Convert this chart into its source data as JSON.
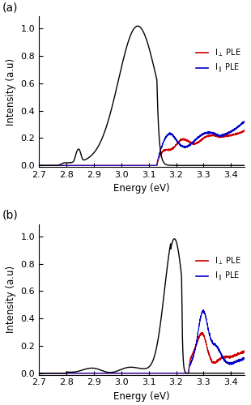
{
  "panel_a_label": "(a)",
  "panel_b_label": "(b)",
  "xticks": [
    2.7,
    2.8,
    2.9,
    3.0,
    3.1,
    3.2,
    3.3,
    3.4
  ],
  "yticks": [
    0.0,
    0.2,
    0.4,
    0.6,
    0.8,
    1.0
  ],
  "xlabel": "Energy (eV)",
  "ylabel": "Intensity (a.u)",
  "pl_color": "#000000",
  "ple_perp_color": "#cc0000",
  "ple_para_color": "#0000cc",
  "legend_fontsize": 7.0,
  "axis_fontsize": 8.5,
  "tick_fontsize": 8.0,
  "label_fontsize": 10
}
